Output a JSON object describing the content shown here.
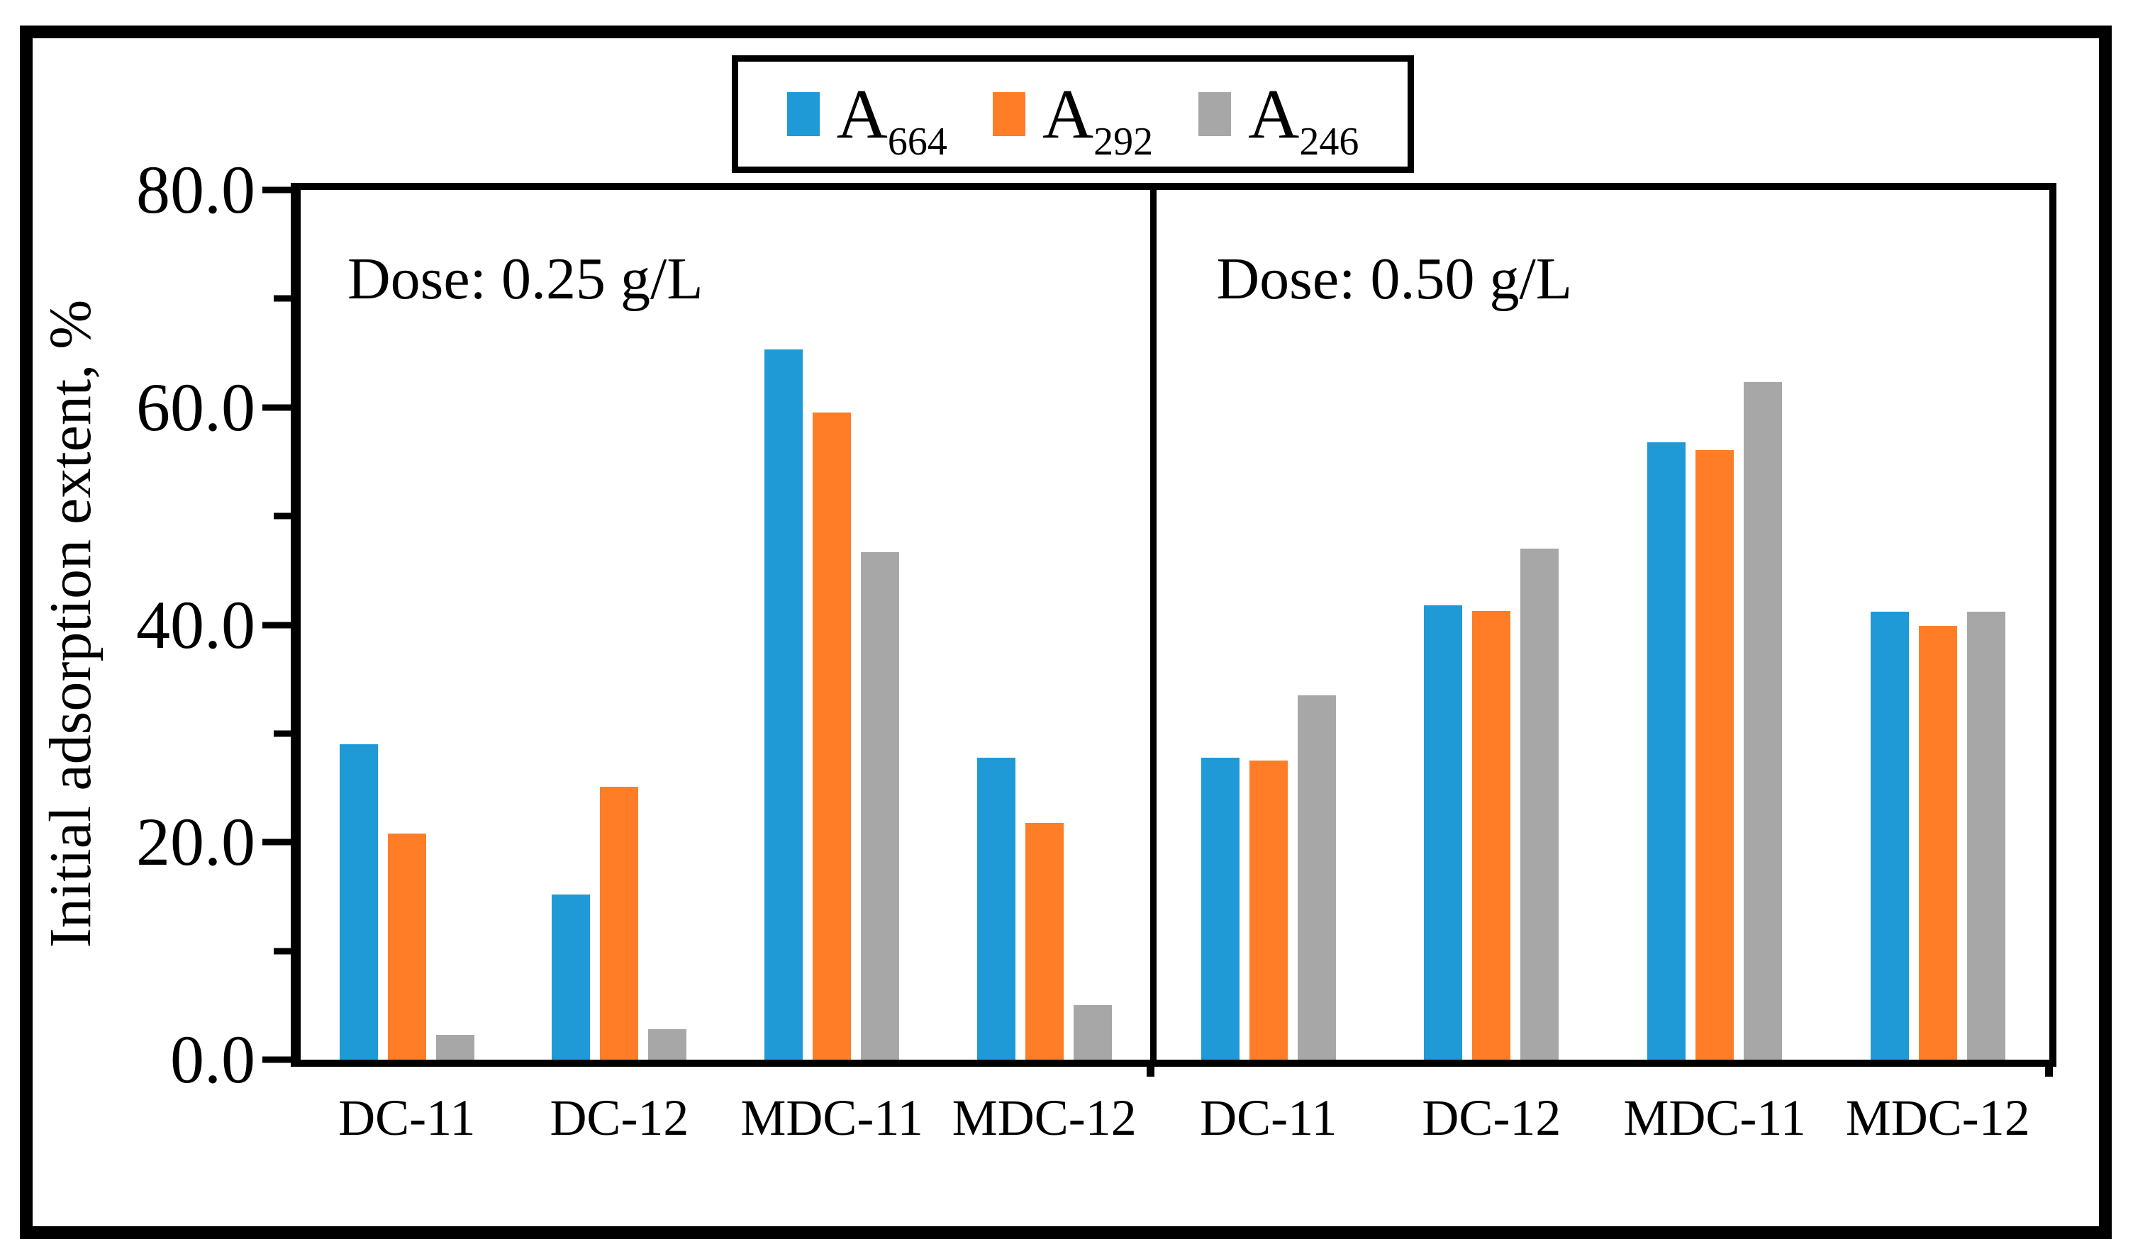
{
  "colors": {
    "A664": "#1f9ad6",
    "A292": "#ff7d26",
    "A246": "#a7a7a7",
    "frame": "#000000"
  },
  "legend": {
    "items": [
      {
        "label": "A",
        "sub": "664",
        "series": "A664"
      },
      {
        "label": "A",
        "sub": "292",
        "series": "A292"
      },
      {
        "label": "A",
        "sub": "246",
        "series": "A246"
      }
    ]
  },
  "y_axis": {
    "title": "Initial adsorption extent, %",
    "min": 0,
    "max": 80,
    "major_ticks": [
      {
        "value": 80,
        "label": "80.0"
      },
      {
        "value": 60,
        "label": "60.0"
      },
      {
        "value": 40,
        "label": "40.0"
      },
      {
        "value": 20,
        "label": "20.0"
      },
      {
        "value": 0,
        "label": "0.0"
      }
    ],
    "minor_ticks": [
      70,
      50,
      30,
      10
    ]
  },
  "chart_data": {
    "type": "bar",
    "title": "",
    "xlabel": "",
    "ylabel": "Initial adsorption extent, %",
    "ylim": [
      0,
      80
    ],
    "grid": false,
    "legend_position": "top-center",
    "series_names": [
      "A664",
      "A292",
      "A246"
    ],
    "panels": [
      {
        "dose_label": "Dose: 0.25 g/L",
        "categories": [
          "DC-11",
          "DC-12",
          "MDC-11",
          "MDC-12"
        ],
        "series": [
          {
            "name": "A664",
            "values": [
              29.0,
              15.2,
              65.3,
              27.8
            ]
          },
          {
            "name": "A292",
            "values": [
              20.8,
              25.1,
              59.5,
              21.8
            ]
          },
          {
            "name": "A246",
            "values": [
              2.3,
              2.8,
              46.7,
              5.0
            ]
          }
        ]
      },
      {
        "dose_label": "Dose: 0.50 g/L",
        "categories": [
          "DC-11",
          "DC-12",
          "MDC-11",
          "MDC-12"
        ],
        "series": [
          {
            "name": "A664",
            "values": [
              27.8,
              41.8,
              56.8,
              41.2
            ]
          },
          {
            "name": "A292",
            "values": [
              27.5,
              41.3,
              56.1,
              39.9
            ]
          },
          {
            "name": "A246",
            "values": [
              33.5,
              47.0,
              62.3,
              41.2
            ]
          }
        ]
      }
    ]
  }
}
